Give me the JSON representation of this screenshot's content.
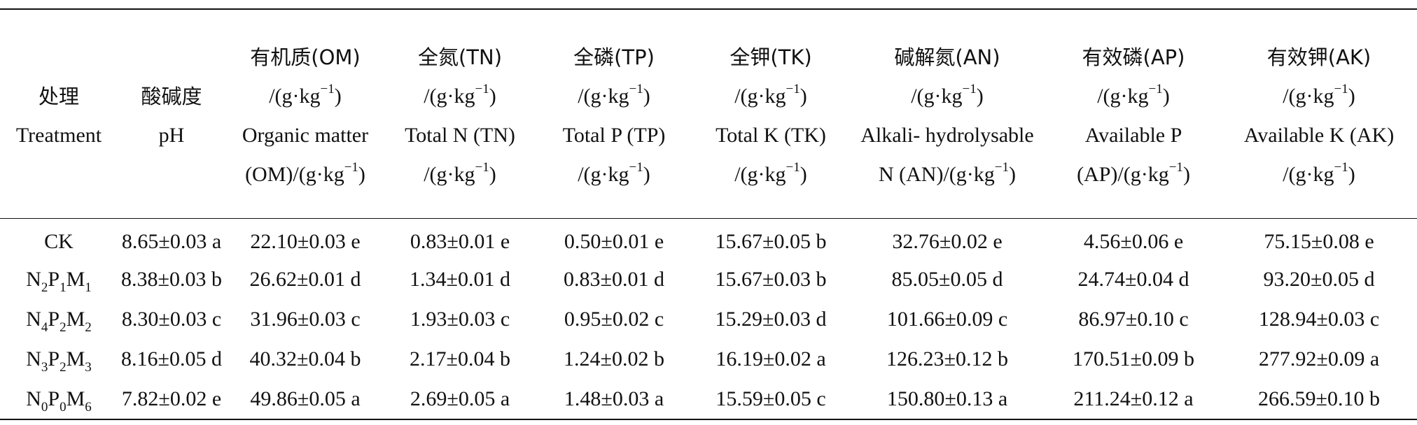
{
  "columns": [
    {
      "cn": "处理",
      "en": "Treatment"
    },
    {
      "cn": "酸碱度",
      "en": "pH"
    },
    {
      "cn": "有机质(OM)",
      "unit1": "/(g·kg",
      "exp1": "−1",
      "close1": ")",
      "en": "Organic matter",
      "unit2": "(OM)/(g·kg",
      "exp2": "−1",
      "close2": ")"
    },
    {
      "cn": "全氮(TN)",
      "unit1": "/(g·kg",
      "exp1": "−1",
      "close1": ")",
      "en": "Total N (TN)",
      "unit2": "/(g·kg",
      "exp2": "−1",
      "close2": ")"
    },
    {
      "cn": "全磷(TP)",
      "unit1": "/(g·kg",
      "exp1": "−1",
      "close1": ")",
      "en": "Total P (TP)",
      "unit2": "/(g·kg",
      "exp2": "−1",
      "close2": ")"
    },
    {
      "cn": "全钾(TK)",
      "unit1": "/(g·kg",
      "exp1": "−1",
      "close1": ")",
      "en": "Total K (TK)",
      "unit2": "/(g·kg",
      "exp2": "−1",
      "close2": ")"
    },
    {
      "cn": "碱解氮(AN)",
      "unit1": "/(g·kg",
      "exp1": "−1",
      "close1": ")",
      "en": "Alkali- hydrolysable",
      "unit2": "N (AN)/(g·kg",
      "exp2": "−1",
      "close2": ")"
    },
    {
      "cn": "有效磷(AP)",
      "unit1": "/(g·kg",
      "exp1": "−1",
      "close1": ")",
      "en": "Available P",
      "unit2": "(AP)/(g·kg",
      "exp2": "−1",
      "close2": ")"
    },
    {
      "cn": "有效钾(AK)",
      "unit1": "/(g·kg",
      "exp1": "−1",
      "close1": ")",
      "en": "Available K (AK)",
      "unit2": "/(g·kg",
      "exp2": "−1",
      "close2": ")"
    }
  ],
  "rows": [
    {
      "treatment": {
        "a": "CK",
        "as": "",
        "b": "",
        "bs": "",
        "c": "",
        "cs": ""
      },
      "values": [
        "8.65±0.03 a",
        "22.10±0.03 e",
        "0.83±0.01 e",
        "0.50±0.01 e",
        "15.67±0.05 b",
        "32.76±0.02 e",
        "4.56±0.06 e",
        "75.15±0.08 e"
      ]
    },
    {
      "treatment": {
        "a": "N",
        "as": "2",
        "b": "P",
        "bs": "1",
        "c": "M",
        "cs": "1"
      },
      "values": [
        "8.38±0.03 b",
        "26.62±0.01 d",
        "1.34±0.01 d",
        "0.83±0.01 d",
        "15.67±0.03 b",
        "85.05±0.05 d",
        "24.74±0.04 d",
        "93.20±0.05 d"
      ]
    },
    {
      "treatment": {
        "a": "N",
        "as": "4",
        "b": "P",
        "bs": "2",
        "c": "M",
        "cs": "2"
      },
      "values": [
        "8.30±0.03 c",
        "31.96±0.03 c",
        "1.93±0.03 c",
        "0.95±0.02 c",
        "15.29±0.03 d",
        "101.66±0.09 c",
        "86.97±0.10 c",
        "128.94±0.03 c"
      ]
    },
    {
      "treatment": {
        "a": "N",
        "as": "3",
        "b": "P",
        "bs": "2",
        "c": "M",
        "cs": "3"
      },
      "values": [
        "8.16±0.05 d",
        "40.32±0.04 b",
        "2.17±0.04 b",
        "1.24±0.02 b",
        "16.19±0.02 a",
        "126.23±0.12 b",
        "170.51±0.09 b",
        "277.92±0.09 a"
      ]
    },
    {
      "treatment": {
        "a": "N",
        "as": "0",
        "b": "P",
        "bs": "0",
        "c": "M",
        "cs": "6"
      },
      "values": [
        "7.82±0.02 e",
        "49.86±0.05 a",
        "2.69±0.05 a",
        "1.48±0.03 a",
        "15.59±0.05 c",
        "150.80±0.13 a",
        "211.24±0.12 a",
        "266.59±0.10 b"
      ]
    }
  ]
}
